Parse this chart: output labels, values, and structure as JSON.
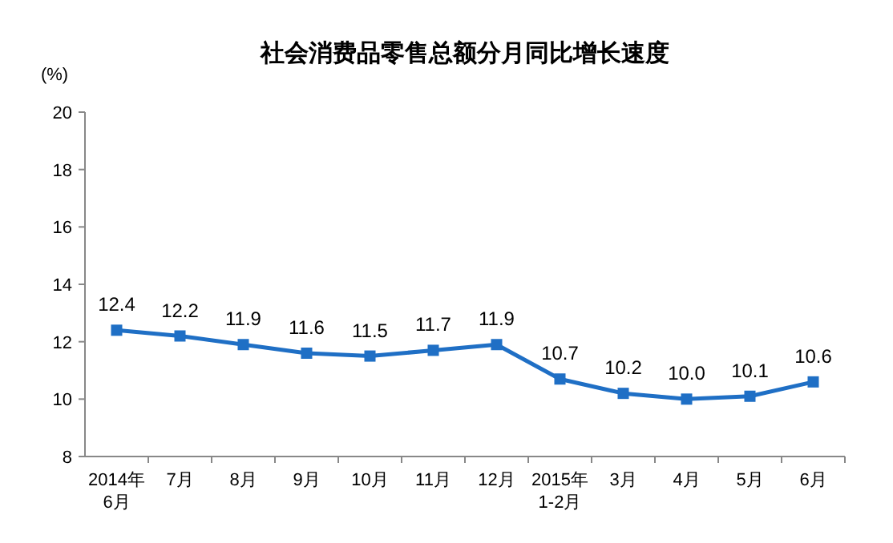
{
  "chart_data": {
    "type": "line",
    "title": "社会消费品零售总额分月同比增长速度",
    "ylabel": "(%)",
    "categories": [
      "2014年\n6月",
      "7月",
      "8月",
      "9月",
      "10月",
      "11月",
      "12月",
      "2015年\n1-2月",
      "3月",
      "4月",
      "5月",
      "6月"
    ],
    "series": [
      {
        "color": "#1f6fc5",
        "values": [
          12.4,
          12.2,
          11.9,
          11.6,
          11.5,
          11.7,
          11.9,
          10.7,
          10.2,
          10.0,
          10.1,
          10.6
        ],
        "value_labels": [
          "12.4",
          "12.2",
          "11.9",
          "11.6",
          "11.5",
          "11.7",
          "11.9",
          "10.7",
          "10.2",
          "10.0",
          "10.1",
          "10.6"
        ]
      }
    ],
    "ylim": [
      8,
      20
    ],
    "yticks": [
      8,
      10,
      12,
      14,
      16,
      18,
      20
    ],
    "marker": "square",
    "line_style": "solid",
    "grid": false
  }
}
